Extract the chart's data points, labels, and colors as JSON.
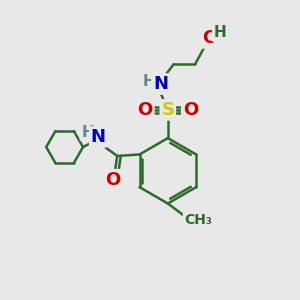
{
  "bg_color": "#e8e8e8",
  "bond_color": "#2d6b2d",
  "bond_width": 1.8,
  "atom_colors": {
    "C": "#2d6b2d",
    "H": "#5a8a8a",
    "N": "#0000cc",
    "O": "#cc0000",
    "S": "#cccc00"
  },
  "font_size": 11,
  "fig_size": [
    3.0,
    3.0
  ],
  "dpi": 100
}
